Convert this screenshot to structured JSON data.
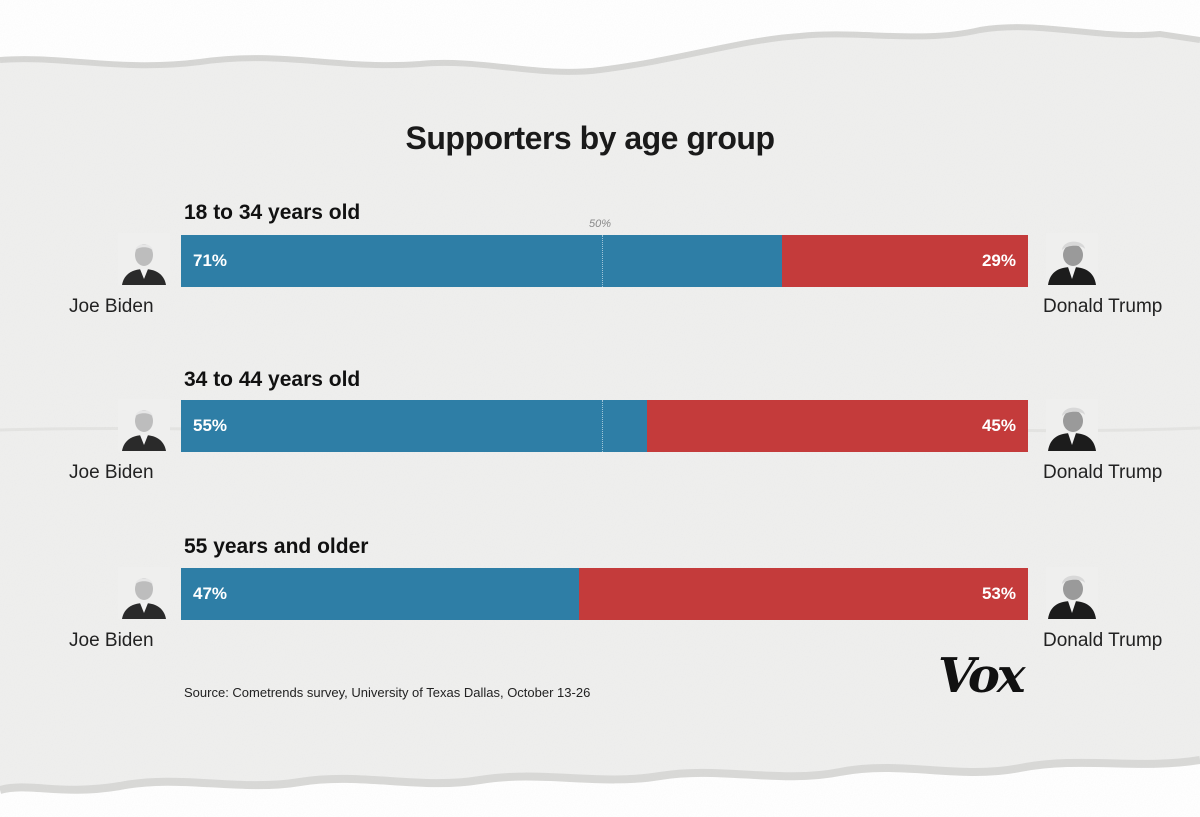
{
  "chart_data": {
    "type": "bar",
    "orientation": "horizontal-stacked",
    "title": "Supporters by age group",
    "midpoint_label": "50%",
    "categories": [
      "18 to 34 years old",
      "34 to 44 years old",
      "55 years and older"
    ],
    "series": [
      {
        "name": "Joe Biden",
        "values": [
          71,
          55,
          47
        ],
        "labels": [
          "71%",
          "55%",
          "47%"
        ],
        "color": "#2e7ea6"
      },
      {
        "name": "Donald Trump",
        "values": [
          29,
          45,
          53
        ],
        "labels": [
          "29%",
          "45%",
          "53%"
        ],
        "color": "#c43b3b"
      }
    ],
    "xlim": [
      0,
      100
    ]
  },
  "candidates": {
    "left": {
      "name": "Joe Biden",
      "icon": "biden-portrait-icon"
    },
    "right": {
      "name": "Donald Trump",
      "icon": "trump-portrait-icon"
    }
  },
  "source": "Source: Cometrends survey, University of Texas Dallas, October 13-26",
  "brand": {
    "logo_text": "Vox"
  }
}
